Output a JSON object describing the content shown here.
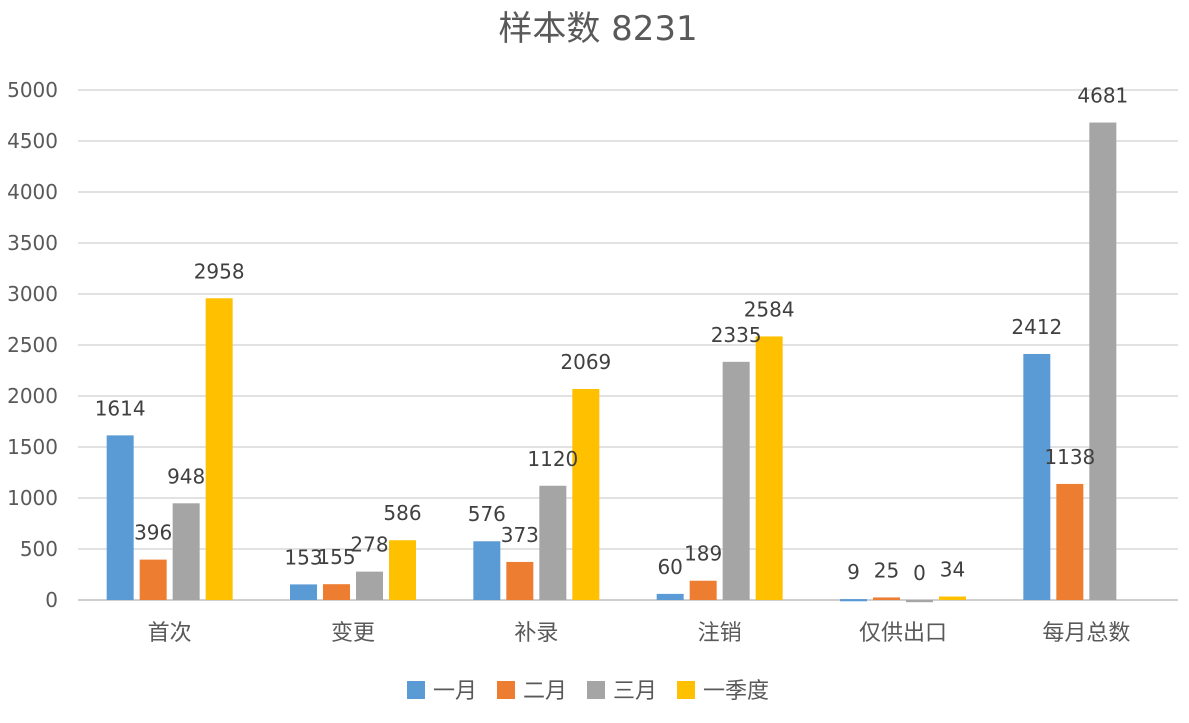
{
  "chart_data": {
    "type": "bar",
    "title": "样本数 8231",
    "categories": [
      "首次",
      "变更",
      "补录",
      "注销",
      "仅供出口",
      "每月总数"
    ],
    "series": [
      {
        "name": "一月",
        "color": "#5B9BD5",
        "values": [
          1614,
          153,
          576,
          60,
          9,
          2412
        ]
      },
      {
        "name": "二月",
        "color": "#ED7D31",
        "values": [
          396,
          155,
          373,
          189,
          25,
          1138
        ]
      },
      {
        "name": "三月",
        "color": "#A5A5A5",
        "values": [
          948,
          278,
          1120,
          2335,
          0,
          4681
        ]
      },
      {
        "name": "一季度",
        "color": "#FFC000",
        "values": [
          2958,
          586,
          2069,
          2584,
          34,
          null
        ]
      }
    ],
    "ylim": [
      0,
      5000
    ],
    "yticks": [
      0,
      500,
      1000,
      1500,
      2000,
      2500,
      3000,
      3500,
      4000,
      4500,
      5000
    ],
    "grid": true,
    "legend_position": "bottom"
  }
}
